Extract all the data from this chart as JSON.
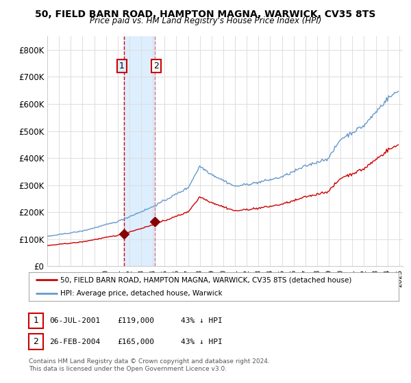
{
  "title1": "50, FIELD BARN ROAD, HAMPTON MAGNA, WARWICK, CV35 8TS",
  "title2": "Price paid vs. HM Land Registry's House Price Index (HPI)",
  "ylim": [
    0,
    850000
  ],
  "yticks": [
    0,
    100000,
    200000,
    300000,
    400000,
    500000,
    600000,
    700000,
    800000
  ],
  "ytick_labels": [
    "£0",
    "£100K",
    "£200K",
    "£300K",
    "£400K",
    "£500K",
    "£600K",
    "£700K",
    "£800K"
  ],
  "hpi_color": "#6699cc",
  "price_color": "#cc0000",
  "marker_color": "#880000",
  "highlight_color": "#ddeeff",
  "t1_year": 2001.51,
  "t2_year": 2004.15,
  "t1_price": 119000,
  "t2_price": 165000,
  "legend_line1": "50, FIELD BARN ROAD, HAMPTON MAGNA, WARWICK, CV35 8TS (detached house)",
  "legend_line2": "HPI: Average price, detached house, Warwick",
  "table_row1": [
    "1",
    "06-JUL-2001",
    "£119,000",
    "43% ↓ HPI"
  ],
  "table_row2": [
    "2",
    "26-FEB-2004",
    "£165,000",
    "43% ↓ HPI"
  ],
  "footnote": "Contains HM Land Registry data © Crown copyright and database right 2024.\nThis data is licensed under the Open Government Licence v3.0.",
  "xstart_year": 1995,
  "xend_year": 2025
}
